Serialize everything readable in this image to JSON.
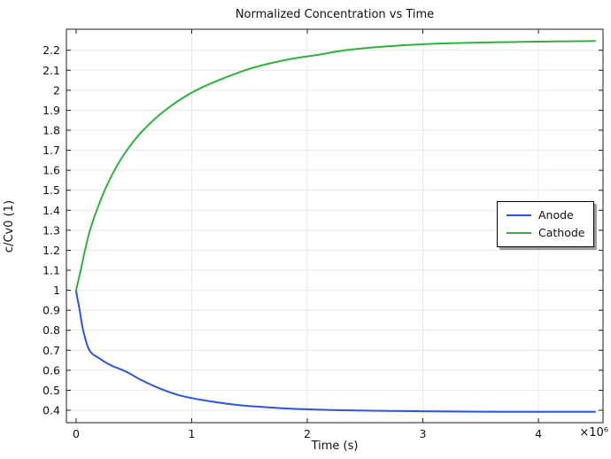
{
  "title": "Normalized Concentration vs Time",
  "chart_data": {
    "type": "line",
    "title": "Normalized Concentration vs Time",
    "xlabel": "Time (s)",
    "ylabel": "c/Cv0 (1)",
    "x_multiplier_label": "×10⁶",
    "grid": true,
    "legend_position": "right-middle",
    "xaxis": {
      "min": -84000,
      "max": 4559000,
      "ticks": [
        {
          "value": 0,
          "label": "0"
        },
        {
          "value": 1000000,
          "label": "1"
        },
        {
          "value": 2000000,
          "label": "2"
        },
        {
          "value": 3000000,
          "label": "3"
        },
        {
          "value": 4000000,
          "label": "4"
        }
      ],
      "gridlines": [
        1000000,
        2000000,
        3000000,
        4000000
      ]
    },
    "yaxis": {
      "min": 0.338,
      "max": 2.305,
      "ticks": [
        {
          "value": 0.4,
          "label": "0.4"
        },
        {
          "value": 0.5,
          "label": "0.5"
        },
        {
          "value": 0.6,
          "label": "0.6"
        },
        {
          "value": 0.7,
          "label": "0.7"
        },
        {
          "value": 0.8,
          "label": "0.8"
        },
        {
          "value": 0.9,
          "label": "0.9"
        },
        {
          "value": 1.0,
          "label": "1"
        },
        {
          "value": 1.1,
          "label": "1.1"
        },
        {
          "value": 1.2,
          "label": "1.2"
        },
        {
          "value": 1.3,
          "label": "1.3"
        },
        {
          "value": 1.4,
          "label": "1.4"
        },
        {
          "value": 1.5,
          "label": "1.5"
        },
        {
          "value": 1.6,
          "label": "1.6"
        },
        {
          "value": 1.7,
          "label": "1.7"
        },
        {
          "value": 1.8,
          "label": "1.8"
        },
        {
          "value": 1.9,
          "label": "1.9"
        },
        {
          "value": 2.0,
          "label": "2"
        },
        {
          "value": 2.1,
          "label": "2.1"
        },
        {
          "value": 2.2,
          "label": "2.2"
        }
      ]
    },
    "series": [
      {
        "name": "Anode",
        "color": "#2d55dc",
        "x": [
          0,
          8000,
          15000,
          31000,
          61000,
          115000,
          200000,
          300000,
          414000,
          490000,
          567000,
          720000,
          874000,
          1000000,
          1180000,
          1330000,
          1500000,
          1750000,
          2000000,
          2300000,
          2700000,
          3000000,
          3500000,
          4000000,
          4490000
        ],
        "y": [
          1.0,
          0.97,
          0.948,
          0.9,
          0.8,
          0.7,
          0.66,
          0.625,
          0.598,
          0.575,
          0.55,
          0.51,
          0.478,
          0.461,
          0.443,
          0.431,
          0.421,
          0.411,
          0.405,
          0.4,
          0.397,
          0.395,
          0.393,
          0.392,
          0.392
        ]
      },
      {
        "name": "Cathode",
        "color": "#2eb33e",
        "x": [
          0,
          10000,
          20000,
          40000,
          77000,
          120000,
          179000,
          248000,
          332000,
          439000,
          580000,
          771000,
          1040000,
          1461000,
          1800000,
          2100000,
          2400000,
          3000000,
          3600000,
          4490000
        ],
        "y": [
          1.0,
          1.025,
          1.05,
          1.1,
          1.2,
          1.3,
          1.4,
          1.5,
          1.6,
          1.7,
          1.8,
          1.9,
          2.0,
          2.1,
          2.15,
          2.178,
          2.205,
          2.23,
          2.24,
          2.246
        ]
      }
    ]
  },
  "colors": {
    "grid": "#e9e9e9",
    "frame": "#1c1c1c",
    "background": "#ffffff",
    "legend_shadow": "#9e9e9e",
    "text": "#111111"
  }
}
